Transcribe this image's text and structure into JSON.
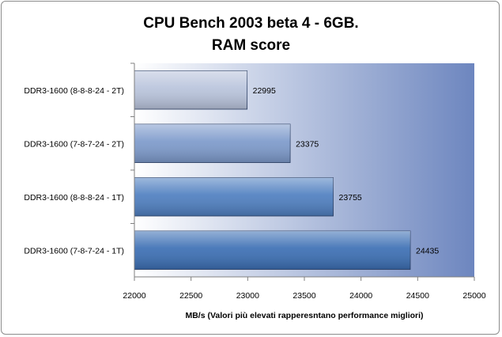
{
  "chart_data": {
    "type": "bar",
    "orientation": "horizontal",
    "title": "CPU Bench 2003 beta 4 - 6GB.",
    "subtitle": "RAM score",
    "xlabel": "MB/s (Valori più  elevati rapperesntano performance migliori)",
    "ylabel": "",
    "xlim": [
      22000,
      25000
    ],
    "xticks": [
      22000,
      22500,
      23000,
      23500,
      24000,
      24500,
      25000
    ],
    "xtick_labels": [
      "22000",
      "22500",
      "23000",
      "23500",
      "24000",
      "24500",
      "25000"
    ],
    "grid": false,
    "categories": [
      "DDR3-1600 (8-8-8-24 - 2T)",
      "DDR3-1600 (7-8-7-24 - 2T)",
      "DDR3-1600 (8-8-8-24 - 1T)",
      "DDR3-1600 (7-8-7-24 - 1T)"
    ],
    "values": [
      22995,
      23375,
      23755,
      24435
    ],
    "value_labels": [
      "22995",
      "23375",
      "23755",
      "24435"
    ],
    "colors": [
      "#b9c4dc",
      "#7d9acb",
      "#4f7fc0",
      "#3c6fb4"
    ]
  }
}
